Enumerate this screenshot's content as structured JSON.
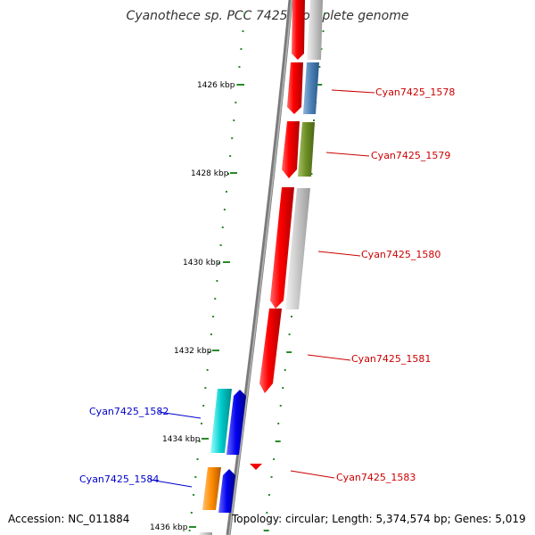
{
  "title": "Cyanothece sp. PCC 7425, complete genome",
  "accession": "Accession: NC_011884",
  "summary": "Topology: circular; Length: 5,374,574 bp; Genes: 5,019",
  "colors": {
    "backbone": "#8a8a8a",
    "tick": "#2a8a2a",
    "plus_label": "#cc0000",
    "minus_label": "#0000cc"
  },
  "ticks": [
    "1426 kbp",
    "1428 kbp",
    "1430 kbp",
    "1432 kbp",
    "1434 kbp",
    "1436 kbp"
  ],
  "gene_labels": [
    {
      "text": "Cyan7425_1578",
      "strand": "plus"
    },
    {
      "text": "Cyan7425_1579",
      "strand": "plus"
    },
    {
      "text": "Cyan7425_1580",
      "strand": "plus"
    },
    {
      "text": "Cyan7425_1581",
      "strand": "plus"
    },
    {
      "text": "Cyan7425_1582",
      "strand": "minus"
    },
    {
      "text": "Cyan7425_1583",
      "strand": "plus"
    },
    {
      "text": "Cyan7425_1584",
      "strand": "minus"
    }
  ]
}
